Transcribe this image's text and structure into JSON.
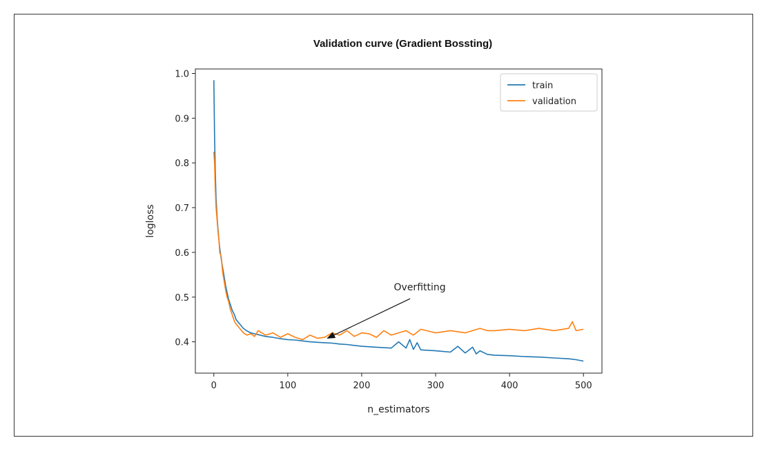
{
  "chart_data": {
    "type": "line",
    "title": "Validation curve (Gradient Bossting)",
    "xlabel": "n_estimators",
    "ylabel": "logloss",
    "xlim": [
      -25,
      525
    ],
    "ylim": [
      0.33,
      1.01
    ],
    "xticks": [
      0,
      100,
      200,
      300,
      400,
      500
    ],
    "yticks": [
      0.4,
      0.5,
      0.6,
      0.7,
      0.8,
      0.9,
      1.0
    ],
    "legend_position": "top-right",
    "grid": false,
    "series": [
      {
        "name": "train",
        "color": "#1f77b4",
        "x": [
          0,
          1,
          2,
          3,
          4,
          5,
          6,
          7,
          8,
          10,
          12,
          14,
          16,
          18,
          20,
          22,
          25,
          28,
          30,
          35,
          40,
          45,
          50,
          60,
          70,
          80,
          90,
          100,
          110,
          120,
          130,
          140,
          150,
          160,
          170,
          180,
          190,
          200,
          220,
          240,
          250,
          260,
          265,
          270,
          275,
          280,
          300,
          320,
          330,
          340,
          350,
          355,
          360,
          370,
          380,
          400,
          420,
          440,
          460,
          480,
          490,
          500
        ],
        "y": [
          0.985,
          0.86,
          0.78,
          0.72,
          0.69,
          0.665,
          0.645,
          0.625,
          0.61,
          0.585,
          0.565,
          0.545,
          0.525,
          0.51,
          0.495,
          0.485,
          0.47,
          0.46,
          0.45,
          0.44,
          0.43,
          0.424,
          0.42,
          0.416,
          0.412,
          0.41,
          0.407,
          0.405,
          0.404,
          0.402,
          0.4,
          0.399,
          0.398,
          0.397,
          0.395,
          0.394,
          0.392,
          0.39,
          0.388,
          0.386,
          0.4,
          0.386,
          0.405,
          0.383,
          0.398,
          0.382,
          0.38,
          0.377,
          0.39,
          0.375,
          0.388,
          0.373,
          0.38,
          0.372,
          0.37,
          0.369,
          0.367,
          0.366,
          0.364,
          0.362,
          0.36,
          0.357
        ]
      },
      {
        "name": "validation",
        "color": "#ff7f0e",
        "x": [
          0,
          1,
          2,
          3,
          4,
          5,
          6,
          7,
          8,
          10,
          12,
          14,
          16,
          18,
          20,
          22,
          25,
          28,
          30,
          35,
          40,
          45,
          50,
          55,
          60,
          70,
          80,
          90,
          100,
          110,
          120,
          130,
          140,
          150,
          160,
          170,
          180,
          190,
          200,
          210,
          220,
          230,
          240,
          250,
          260,
          270,
          280,
          300,
          320,
          340,
          360,
          370,
          380,
          400,
          420,
          440,
          460,
          480,
          485,
          490,
          500
        ],
        "y": [
          0.825,
          0.8,
          0.74,
          0.7,
          0.68,
          0.66,
          0.64,
          0.625,
          0.6,
          0.59,
          0.555,
          0.535,
          0.515,
          0.5,
          0.49,
          0.475,
          0.46,
          0.445,
          0.44,
          0.43,
          0.42,
          0.415,
          0.418,
          0.412,
          0.425,
          0.415,
          0.42,
          0.41,
          0.418,
          0.41,
          0.405,
          0.415,
          0.408,
          0.41,
          0.42,
          0.415,
          0.425,
          0.412,
          0.42,
          0.418,
          0.41,
          0.425,
          0.415,
          0.42,
          0.425,
          0.415,
          0.428,
          0.42,
          0.425,
          0.42,
          0.43,
          0.425,
          0.425,
          0.428,
          0.425,
          0.43,
          0.425,
          0.43,
          0.445,
          0.425,
          0.428
        ]
      }
    ],
    "annotation": {
      "text": "Overfitting",
      "text_at": [
        230,
        0.515
      ],
      "arrow_to": [
        150,
        0.405
      ]
    }
  }
}
